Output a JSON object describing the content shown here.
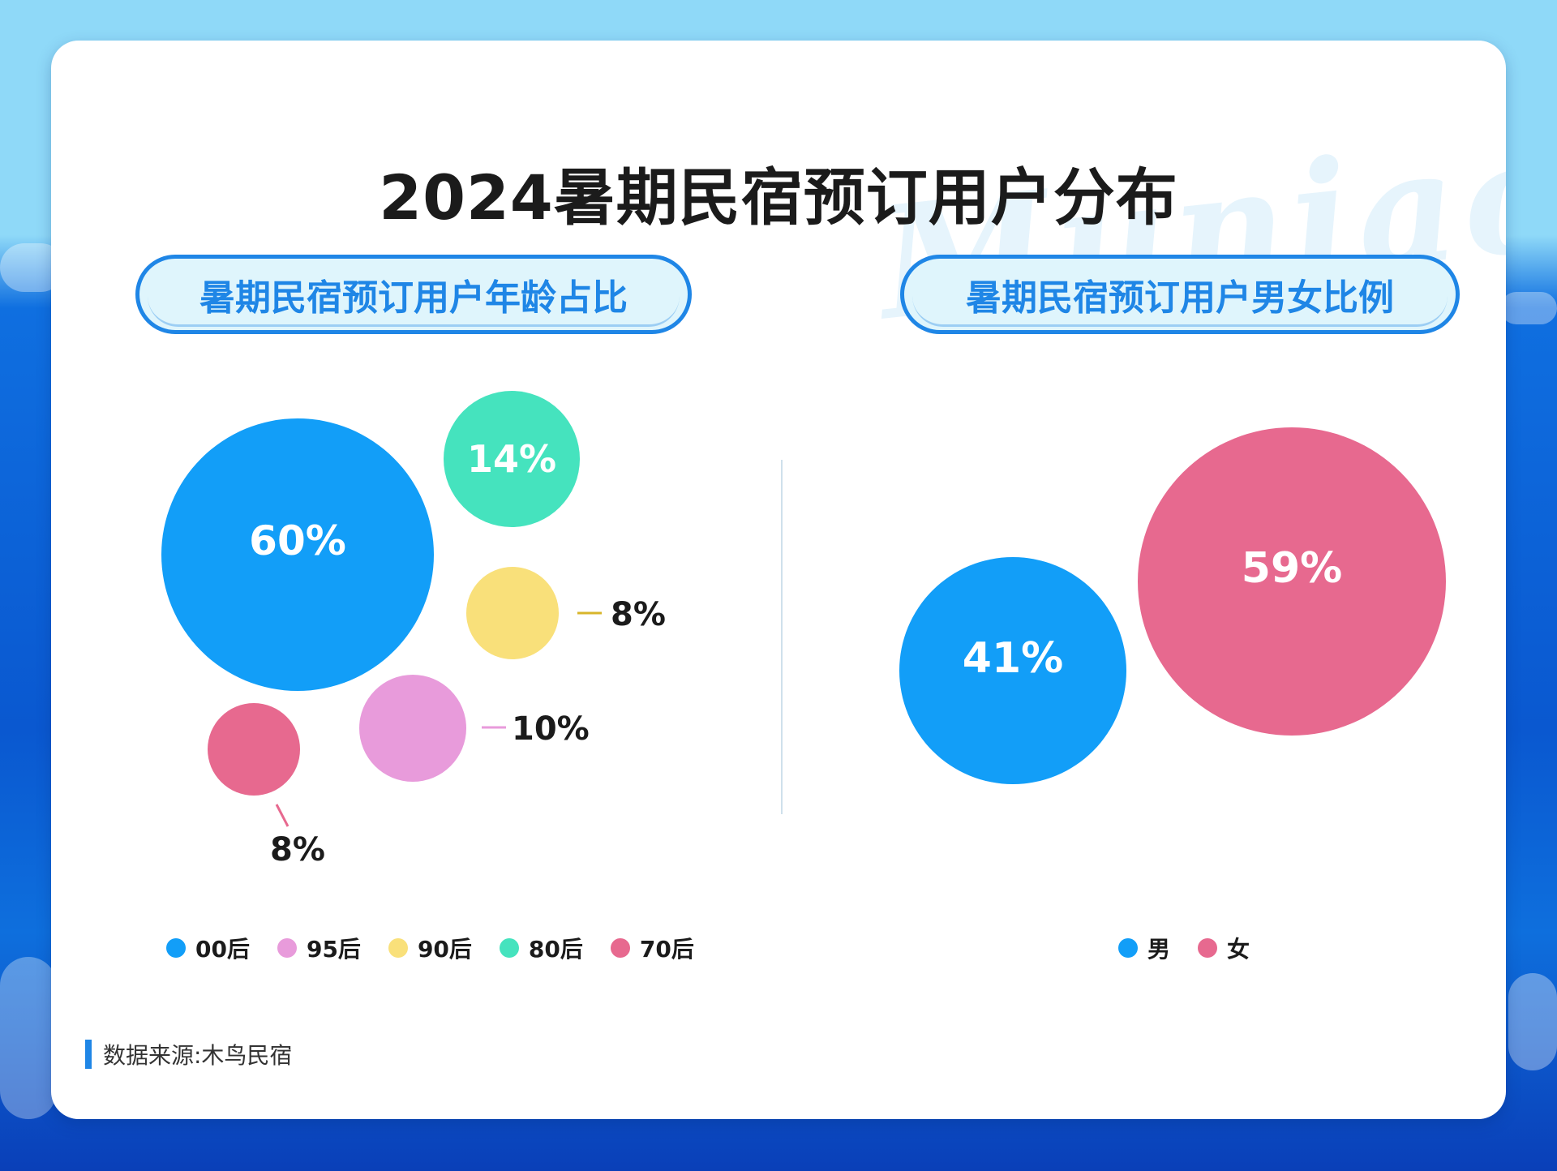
{
  "title": "2024暑期民宿预订用户分布",
  "watermark": "Muniao",
  "source": "数据来源:木鸟民宿",
  "colors": {
    "blue": "#129ef8",
    "pink": "#e7698f",
    "lilac": "#e89bdb",
    "yellow": "#f9e07a",
    "teal": "#45e3be"
  },
  "chart_data": [
    {
      "type": "bubble",
      "title": "暑期民宿预订用户年龄占比",
      "legend_placement": "bottom",
      "series": [
        {
          "name": "00后",
          "value": 60,
          "label": "60%",
          "color": "#129ef8"
        },
        {
          "name": "95后",
          "value": 10,
          "label": "10%",
          "color": "#e89bdb"
        },
        {
          "name": "90后",
          "value": 8,
          "label": "8%",
          "color": "#f9e07a"
        },
        {
          "name": "80后",
          "value": 14,
          "label": "14%",
          "color": "#45e3be"
        },
        {
          "name": "70后",
          "value": 8,
          "label": "8%",
          "color": "#e7698f"
        }
      ]
    },
    {
      "type": "bubble",
      "title": "暑期民宿预订用户男女比例",
      "legend_placement": "bottom",
      "series": [
        {
          "name": "男",
          "value": 41,
          "label": "41%",
          "color": "#129ef8"
        },
        {
          "name": "女",
          "value": 59,
          "label": "59%",
          "color": "#e7698f"
        }
      ]
    }
  ]
}
